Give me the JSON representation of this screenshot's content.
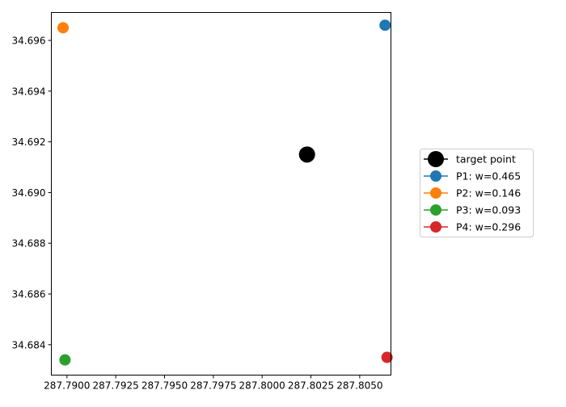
{
  "chart_data": {
    "type": "scatter",
    "title": "",
    "xlabel": "",
    "ylabel": "",
    "xlim": [
      287.7892,
      287.8066
    ],
    "ylim": [
      34.6828,
      34.6971
    ],
    "grid": false,
    "legend_placement": "center-right",
    "x_ticks": [
      {
        "value": 287.79,
        "label": "287.7900"
      },
      {
        "value": 287.7925,
        "label": "287.7925"
      },
      {
        "value": 287.795,
        "label": "287.7950"
      },
      {
        "value": 287.7975,
        "label": "287.7975"
      },
      {
        "value": 287.8,
        "label": "287.8000"
      },
      {
        "value": 287.8025,
        "label": "287.8025"
      },
      {
        "value": 287.805,
        "label": "287.8050"
      }
    ],
    "y_ticks": [
      {
        "value": 34.684,
        "label": "34.684"
      },
      {
        "value": 34.686,
        "label": "34.686"
      },
      {
        "value": 34.688,
        "label": "34.688"
      },
      {
        "value": 34.69,
        "label": "34.690"
      },
      {
        "value": 34.692,
        "label": "34.692"
      },
      {
        "value": 34.694,
        "label": "34.694"
      },
      {
        "value": 34.696,
        "label": "34.696"
      }
    ],
    "series": [
      {
        "name": "target point",
        "color": "#000000",
        "marker": "large",
        "x": [
          287.8023
        ],
        "y": [
          34.6915
        ]
      },
      {
        "name": "P1: w=0.465",
        "color": "#1f77b4",
        "marker": "normal",
        "x": [
          287.8063
        ],
        "y": [
          34.6966
        ]
      },
      {
        "name": "P2: w=0.146",
        "color": "#ff7f0e",
        "marker": "normal",
        "x": [
          287.7898
        ],
        "y": [
          34.6965
        ]
      },
      {
        "name": "P3: w=0.093",
        "color": "#2ca02c",
        "marker": "normal",
        "x": [
          287.7899
        ],
        "y": [
          34.6834
        ]
      },
      {
        "name": "P4: w=0.296",
        "color": "#d62728",
        "marker": "normal",
        "x": [
          287.8064
        ],
        "y": [
          34.6835
        ]
      }
    ]
  }
}
